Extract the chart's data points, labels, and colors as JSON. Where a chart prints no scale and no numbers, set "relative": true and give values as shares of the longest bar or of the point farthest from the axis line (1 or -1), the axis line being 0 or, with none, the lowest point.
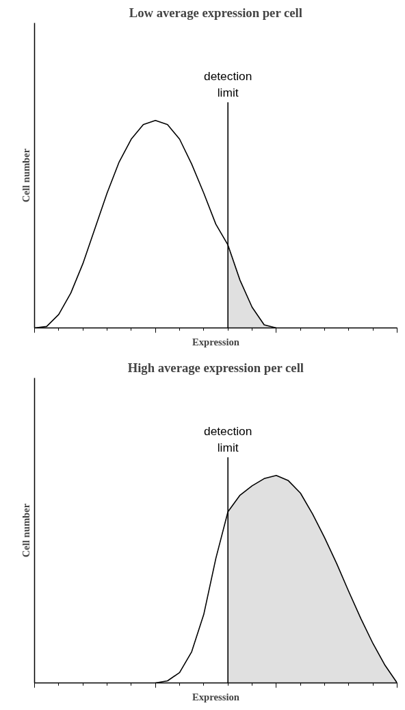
{
  "chart_data": [
    {
      "type": "line",
      "title": "Low average expression per cell",
      "xlabel": "Expression",
      "ylabel": "Cell number",
      "relative": true,
      "categories": [
        null,
        null,
        null,
        null,
        null,
        null,
        null,
        null,
        null,
        null,
        null,
        null,
        null,
        null,
        null,
        null,
        null,
        null,
        null,
        null,
        null,
        null,
        null,
        null,
        null,
        null,
        null,
        null,
        null,
        null,
        null
      ],
      "grid": false,
      "legend": false,
      "marker": "none",
      "line_style": "solid",
      "series": [
        {
          "color": "#000000",
          "values": [
            0,
            0.007,
            0.065,
            0.168,
            0.31,
            0.48,
            0.65,
            0.8,
            0.91,
            0.98,
            1,
            0.98,
            0.91,
            0.79,
            0.65,
            0.5,
            0.4,
            0.23,
            0.1,
            0.015,
            0,
            null,
            null,
            null,
            null,
            null,
            null,
            null,
            null,
            null,
            null
          ]
        },
        {
          "type": "area",
          "color": "#e0e0e0",
          "values": [
            null,
            null,
            null,
            null,
            null,
            null,
            null,
            null,
            null,
            null,
            null,
            null,
            null,
            null,
            null,
            null,
            0.4,
            0.23,
            0.1,
            0.015,
            0,
            null,
            null,
            null,
            null,
            null,
            null,
            null,
            null,
            null,
            null
          ]
        }
      ],
      "annotations": [
        "detection\nlimit"
      ]
    },
    {
      "type": "line",
      "title": "High average expression per cell",
      "xlabel": "Expression",
      "ylabel": "Cell number",
      "relative": true,
      "categories": [
        null,
        null,
        null,
        null,
        null,
        null,
        null,
        null,
        null,
        null,
        null,
        null,
        null,
        null,
        null,
        null,
        null,
        null,
        null,
        null,
        null,
        null,
        null,
        null,
        null,
        null,
        null,
        null,
        null,
        null,
        null
      ],
      "grid": false,
      "legend": false,
      "marker": "none",
      "line_style": "solid",
      "series": [
        {
          "color": "#000000",
          "values": [
            null,
            null,
            null,
            null,
            null,
            null,
            null,
            null,
            null,
            null,
            0,
            0.01,
            0.05,
            0.15,
            0.33,
            0.6,
            0.825,
            0.905,
            0.95,
            0.985,
            1,
            0.975,
            0.915,
            0.815,
            0.7,
            0.575,
            0.44,
            0.31,
            0.19,
            0.085,
            0
          ]
        },
        {
          "type": "area",
          "color": "#e0e0e0",
          "values": [
            null,
            null,
            null,
            null,
            null,
            null,
            null,
            null,
            null,
            null,
            null,
            null,
            null,
            null,
            null,
            null,
            0.825,
            0.905,
            0.95,
            0.985,
            1,
            0.975,
            0.915,
            0.815,
            0.7,
            0.575,
            0.44,
            0.31,
            0.19,
            0.085,
            0
          ]
        }
      ],
      "annotations": [
        "detection\nlimit"
      ]
    }
  ]
}
